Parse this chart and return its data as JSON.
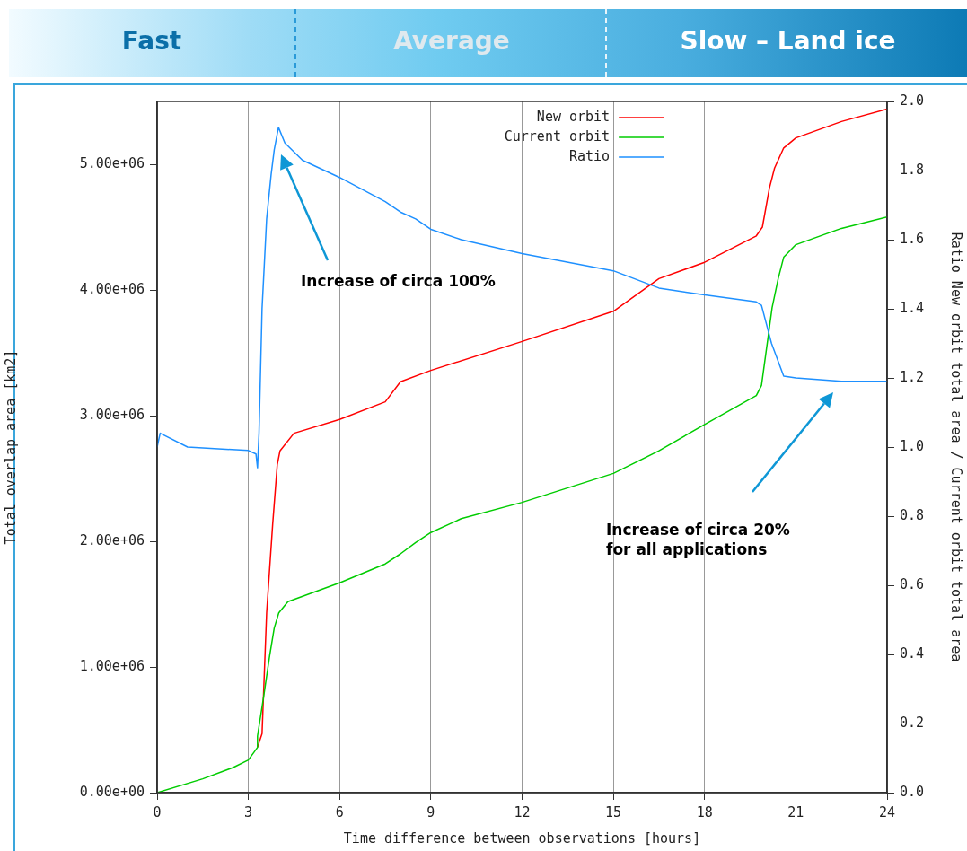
{
  "chart_data": {
    "type": "line",
    "xlabel": "Time difference between observations [hours]",
    "ylabel": "Total overlap area [km2]",
    "y2label": "Ratio New orbit total area / Current orbit total area",
    "annotations": [
      "Fast",
      "Average",
      "Slow – Land ice",
      "Increase of circa 100%",
      "Increase of circa 20%\nfor all applications"
    ],
    "series": [
      {
        "name": "New orbit",
        "color": "#ff0000",
        "x": [
          3.3,
          3.45,
          3.6,
          3.8,
          3.95,
          4.04,
          4.5,
          6,
          7.5,
          8,
          9,
          12,
          15,
          16.5,
          18,
          19.7,
          19.9,
          20.13,
          20.3,
          20.6,
          21,
          22.5,
          24
        ],
        "values": [
          360000,
          470000,
          1430000,
          2140000,
          2610000,
          2720000,
          2860000,
          2970000,
          3110000,
          3270000,
          3360000,
          3590000,
          3830000,
          4090000,
          4220000,
          4430000,
          4500000,
          4810000,
          4970000,
          5130000,
          5210000,
          5340000,
          5440000
        ]
      },
      {
        "name": "Current orbit",
        "color": "#00cc00",
        "x": [
          0,
          1.5,
          2.5,
          3,
          3.3,
          3.3,
          3.5,
          3.7,
          3.85,
          4.0,
          4.3,
          6,
          7.5,
          8,
          8.5,
          9,
          10,
          12,
          15,
          16.5,
          18,
          19.7,
          19.87,
          20.0,
          20.22,
          20.42,
          20.6,
          21,
          22.5,
          24
        ],
        "values": [
          0,
          110000,
          200000,
          260000,
          360000,
          450000,
          760000,
          1090000,
          1310000,
          1430000,
          1520000,
          1670000,
          1820000,
          1900000,
          1990000,
          2070000,
          2180000,
          2310000,
          2540000,
          2720000,
          2930000,
          3160000,
          3240000,
          3470000,
          3860000,
          4090000,
          4260000,
          4360000,
          4490000,
          4580000
        ]
      },
      {
        "name": "Ratio",
        "color": "#1e90ff",
        "axis": "y2",
        "x": [
          0,
          0.1,
          1,
          3,
          3.25,
          3.3,
          3.35,
          3.45,
          3.6,
          3.75,
          3.85,
          3.99,
          4.2,
          4.78,
          6,
          7.5,
          8,
          8.5,
          9,
          10,
          12,
          15,
          16.5,
          18,
          19.7,
          19.87,
          20.2,
          20.6,
          21,
          22.5,
          24
        ],
        "values": [
          1.0,
          1.04,
          1.0,
          0.99,
          0.98,
          0.94,
          1.04,
          1.4,
          1.66,
          1.79,
          1.86,
          1.925,
          1.88,
          1.83,
          1.78,
          1.71,
          1.68,
          1.66,
          1.63,
          1.6,
          1.56,
          1.51,
          1.46,
          1.44,
          1.42,
          1.41,
          1.3,
          1.205,
          1.2,
          1.19,
          1.19
        ]
      }
    ],
    "xlim": [
      0,
      24
    ],
    "xticks": [
      0,
      3,
      6,
      9,
      12,
      15,
      18,
      21,
      24
    ],
    "ylim": [
      0,
      5500000
    ],
    "yticks": [
      {
        "value": 0,
        "label": "0.00e+00"
      },
      {
        "value": 1000000,
        "label": "1.00e+06"
      },
      {
        "value": 2000000,
        "label": "2.00e+06"
      },
      {
        "value": 3000000,
        "label": "3.00e+06"
      },
      {
        "value": 4000000,
        "label": "4.00e+06"
      },
      {
        "value": 5000000,
        "label": "5.00e+06"
      }
    ],
    "y2lim": [
      0,
      2
    ],
    "y2ticks": [
      {
        "value": 0,
        "label": "0.0"
      },
      0.2,
      0.4,
      0.6,
      0.8,
      {
        "value": 1,
        "label": "1.0"
      },
      1.2,
      1.4,
      1.6,
      1.8,
      {
        "value": 2,
        "label": "2.0"
      }
    ],
    "grid": "x",
    "legend": "top",
    "marker": "none",
    "line_style": "solid"
  }
}
